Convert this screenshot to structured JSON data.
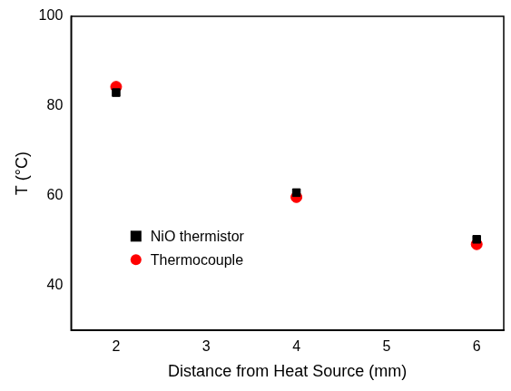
{
  "chart_data": {
    "type": "scatter",
    "x_label": "Distance from Heat Source (mm)",
    "y_label": "T (°C)",
    "x": [
      2,
      4,
      6
    ],
    "series": [
      {
        "name": "NiO thermistor",
        "color": "#000000",
        "marker": "square",
        "values": [
          83,
          60.7,
          50.3
        ]
      },
      {
        "name": "Thermocouple",
        "color": "#ff0000",
        "marker": "circle",
        "values": [
          84.3,
          59.7,
          49.2
        ]
      }
    ],
    "xlim": [
      1.5,
      6.3
    ],
    "xticks": [
      2,
      3,
      4,
      5,
      6
    ],
    "ylim": [
      30,
      100
    ],
    "yticks": [
      40,
      60,
      80,
      100
    ],
    "grid": false,
    "legend": "left"
  }
}
